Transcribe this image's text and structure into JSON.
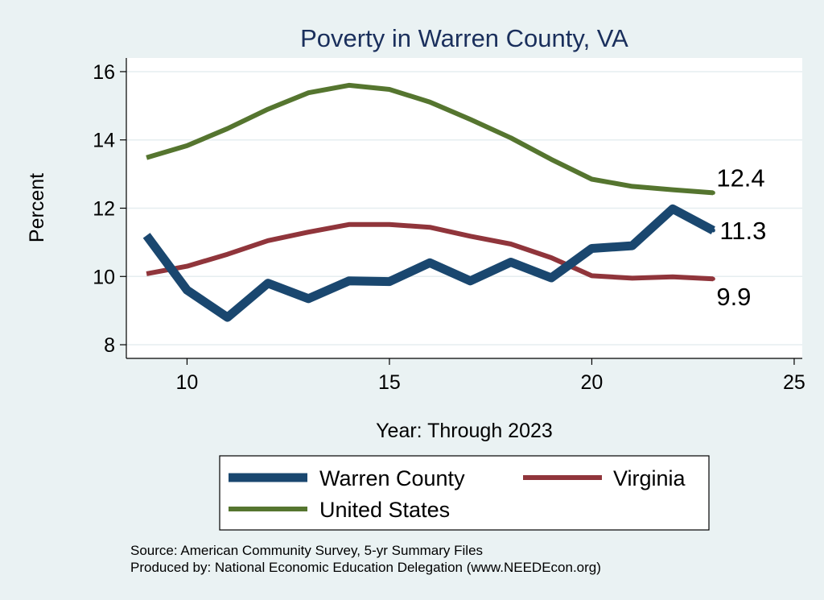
{
  "chart_data": {
    "type": "line",
    "title": "Poverty in Warren County, VA",
    "xlabel": "Year: Through 2023",
    "ylabel": "Percent",
    "xlim": [
      8.5,
      25.2
    ],
    "ylim": [
      7.6,
      16.4
    ],
    "xticks": [
      10,
      15,
      20,
      25
    ],
    "yticks": [
      8,
      10,
      12,
      14,
      16
    ],
    "x": [
      9,
      10,
      11,
      12,
      13,
      14,
      15,
      16,
      17,
      18,
      19,
      20,
      21,
      22,
      23
    ],
    "series": [
      {
        "name": "Warren County",
        "color": "#1a476f",
        "values": [
          11.2,
          9.6,
          8.8,
          9.8,
          9.35,
          9.87,
          9.85,
          10.4,
          9.87,
          10.42,
          9.96,
          10.82,
          10.9,
          11.98,
          11.35
        ],
        "end_label": "11.3"
      },
      {
        "name": "Virginia",
        "color": "#90353b",
        "values": [
          10.08,
          10.3,
          10.65,
          11.05,
          11.3,
          11.52,
          11.52,
          11.44,
          11.18,
          10.95,
          10.55,
          10.02,
          9.95,
          9.99,
          9.93
        ],
        "end_label": "9.9"
      },
      {
        "name": "United States",
        "color": "#55752f",
        "values": [
          13.48,
          13.83,
          14.33,
          14.9,
          15.38,
          15.6,
          15.48,
          15.11,
          14.6,
          14.06,
          13.43,
          12.85,
          12.64,
          12.54,
          12.45
        ],
        "end_label": "12.4"
      }
    ],
    "legend": [
      "Warren County",
      "Virginia",
      "United States"
    ],
    "notes": [
      "Source: American Community Survey, 5-yr Summary Files",
      "Produced by: National Economic Education Delegation (www.NEEDEcon.org)"
    ]
  }
}
